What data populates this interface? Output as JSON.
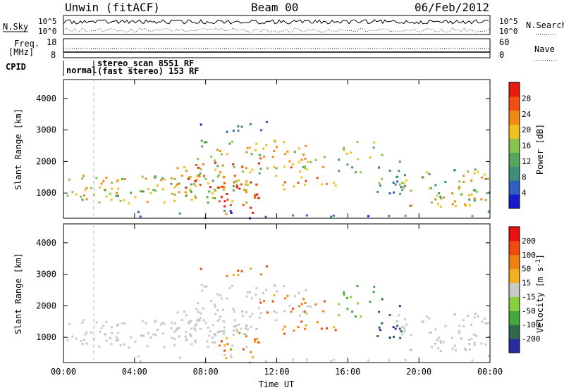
{
  "header": {
    "title": "Unwin (fitACF)",
    "beam": "Beam 00",
    "date": "06/Feb/2012"
  },
  "status_panels": {
    "nsky": {
      "label": "N.Sky",
      "ticks": [
        "10^5",
        "10^0"
      ],
      "right_ticks": [
        "10^5",
        "10^0"
      ],
      "right_label": "N.Search"
    },
    "freq": {
      "label_line1": "Freq.",
      "label_line2": "[MHz]",
      "ticks": [
        "18",
        "8"
      ],
      "right_ticks": [
        "60",
        "0"
      ],
      "right_label": "Nave"
    },
    "cpid": {
      "label": "CPID",
      "modes": [
        "normal",
        "stereo_scan 8551 RF",
        "(fast stereo) 153 RF"
      ]
    }
  },
  "colors": {
    "power": [
      "#1a1ad0",
      "#2d5fc2",
      "#3f8e7a",
      "#53a65a",
      "#88c44a",
      "#f0c020",
      "#f08a10",
      "#f05010",
      "#e81a10"
    ],
    "velocity": [
      "#2a2aa0",
      "#2e6a4a",
      "#44a83a",
      "#88d040",
      "#c8c8c4",
      "#f0b020",
      "#f08010",
      "#f04a10",
      "#e81010"
    ]
  },
  "chart_data": [
    {
      "type": "heatmap",
      "title": "Power",
      "ylabel": "Slant Range [km]",
      "ylim": [
        200,
        4600
      ],
      "yticks": [
        "4000",
        "3000",
        "2000",
        "1000"
      ],
      "xlim": [
        0,
        24
      ],
      "colorbar": {
        "label": "Power [dB]",
        "ticks": [
          "28",
          "24",
          "20",
          "16",
          "12",
          "8",
          "4"
        ]
      }
    },
    {
      "type": "heatmap",
      "title": "Velocity",
      "ylabel": "Slant Range [km]",
      "ylim": [
        200,
        4600
      ],
      "yticks": [
        "4000",
        "3000",
        "2000",
        "1000"
      ],
      "xlim": [
        0,
        24
      ],
      "xlabel": "Time UT",
      "xticks": [
        "00:00",
        "04:00",
        "08:00",
        "12:00",
        "16:00",
        "20:00",
        "00:00"
      ],
      "colorbar": {
        "label_main": "Velocity [m s",
        "label_sup": "-1",
        "label_end": "]",
        "ticks": [
          "200",
          "100",
          "50",
          "15",
          "-15",
          "-50",
          "-100",
          "-200"
        ]
      }
    }
  ]
}
